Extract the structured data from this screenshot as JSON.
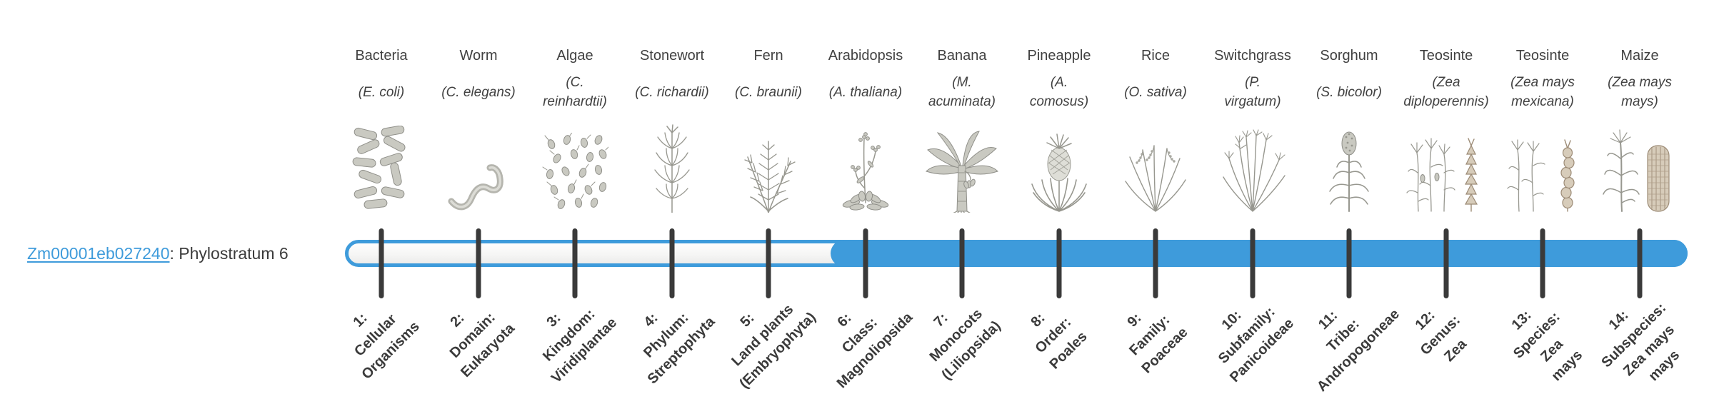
{
  "gene": {
    "id_link": "Zm00001eb027240",
    "suffix": ": Phylostratum 6"
  },
  "timeline": {
    "total_strata": 14,
    "filled_from_stratum": 6,
    "bar_color": "#3E9BDB",
    "tick_color": "#3A3A3A"
  },
  "organisms": [
    {
      "name": "Bacteria",
      "sci_lines": [
        "(E. coli)"
      ],
      "icon": "bacteria-icon"
    },
    {
      "name": "Worm",
      "sci_lines": [
        "(C. elegans)"
      ],
      "icon": "worm-icon"
    },
    {
      "name": "Algae",
      "sci_lines": [
        "(C.",
        "reinhardtii)"
      ],
      "icon": "algae-icon"
    },
    {
      "name": "Stonewort",
      "sci_lines": [
        "(C. richardii)"
      ],
      "icon": "stonewort-icon"
    },
    {
      "name": "Fern",
      "sci_lines": [
        "(C. braunii)"
      ],
      "icon": "fern-icon"
    },
    {
      "name": "Arabidopsis",
      "sci_lines": [
        "(A. thaliana)"
      ],
      "icon": "arabidopsis-icon"
    },
    {
      "name": "Banana",
      "sci_lines": [
        "(M.",
        "acuminata)"
      ],
      "icon": "banana-icon"
    },
    {
      "name": "Pineapple",
      "sci_lines": [
        "(A.",
        "comosus)"
      ],
      "icon": "pineapple-icon"
    },
    {
      "name": "Rice",
      "sci_lines": [
        "(O. sativa)"
      ],
      "icon": "rice-icon"
    },
    {
      "name": "Switchgrass",
      "sci_lines": [
        "(P.",
        "virgatum)"
      ],
      "icon": "switchgrass-icon"
    },
    {
      "name": "Sorghum",
      "sci_lines": [
        "(S. bicolor)"
      ],
      "icon": "sorghum-icon"
    },
    {
      "name": "Teosinte",
      "sci_lines": [
        "(Zea",
        "diploperennis)"
      ],
      "icon": "teosinte-diploperennis-icon"
    },
    {
      "name": "Teosinte",
      "sci_lines": [
        "(Zea mays",
        "mexicana)"
      ],
      "icon": "teosinte-mexicana-icon"
    },
    {
      "name": "Maize",
      "sci_lines": [
        "(Zea mays",
        "mays)"
      ],
      "icon": "maize-icon"
    }
  ],
  "stages": [
    {
      "lines": [
        "1:",
        "Cellular",
        "Organisms"
      ]
    },
    {
      "lines": [
        "2:",
        "Domain:",
        "Eukaryota"
      ]
    },
    {
      "lines": [
        "3:",
        "Kingdom:",
        "Viridiplantae"
      ]
    },
    {
      "lines": [
        "4:",
        "Phylum:",
        "Streptophyta"
      ]
    },
    {
      "lines": [
        "5:",
        "Land plants",
        "(Embryophyta)"
      ]
    },
    {
      "lines": [
        "6:",
        "Class:",
        "Magnoliopsida"
      ]
    },
    {
      "lines": [
        "7:",
        "Monocots",
        "(Liliopsida)"
      ]
    },
    {
      "lines": [
        "8:",
        "Order:",
        "Poales"
      ]
    },
    {
      "lines": [
        "9:",
        "Family:",
        "Poaceae"
      ]
    },
    {
      "lines": [
        "10:",
        "Subfamily:",
        "Panicoideae"
      ]
    },
    {
      "lines": [
        "11:",
        "Tribe:",
        "Andropogoneae"
      ]
    },
    {
      "lines": [
        "12:",
        "Genus:",
        "Zea"
      ]
    },
    {
      "lines": [
        "13:",
        "Species:",
        "Zea",
        "mays"
      ]
    },
    {
      "lines": [
        "14:",
        "Subspecies:",
        "Zea mays",
        "mays"
      ]
    }
  ]
}
